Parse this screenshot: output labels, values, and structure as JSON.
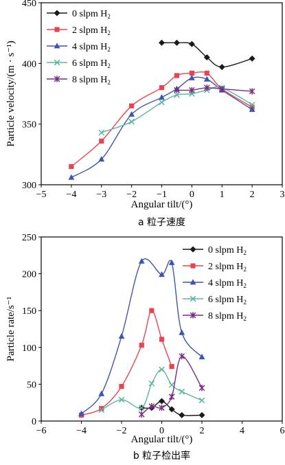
{
  "chart_data": [
    {
      "type": "line",
      "caption": "a 粒子速度",
      "xlabel": "Angular tilt/(°)",
      "ylabel": "Particle velocity/(m · s⁻¹)",
      "xlim": [
        -5,
        3
      ],
      "ylim": [
        300,
        450
      ],
      "xticks": [
        -5,
        -4,
        -3,
        -2,
        -1,
        0,
        1,
        2,
        3
      ],
      "yticks": [
        300,
        350,
        400,
        450
      ],
      "grid": false,
      "legend_position": "top-left",
      "series": [
        {
          "name": "0 slpm H",
          "sub": "2",
          "color": "#1a1a1a",
          "marker": "diamond",
          "x": [
            -1,
            -0.5,
            0,
            0.5,
            1,
            2
          ],
          "y": [
            417,
            417,
            416,
            405,
            397,
            404
          ]
        },
        {
          "name": "2 slpm H",
          "sub": "2",
          "color": "#e8444f",
          "marker": "square",
          "x": [
            -4,
            -3,
            -2,
            -1,
            -0.5,
            0,
            0.5,
            1,
            2
          ],
          "y": [
            315,
            336,
            365,
            380,
            390,
            392,
            392,
            379,
            364
          ]
        },
        {
          "name": "4 slpm H",
          "sub": "2",
          "color": "#3c55b0",
          "marker": "triangle",
          "x": [
            -4,
            -3,
            -2,
            -1,
            -0.5,
            0,
            0.5,
            1,
            2
          ],
          "y": [
            306,
            321,
            358,
            372,
            379,
            388,
            387,
            378,
            362
          ]
        },
        {
          "name": "6 slpm H",
          "sub": "2",
          "color": "#5ab5a0",
          "marker": "x",
          "x": [
            -3,
            -2,
            -1,
            -0.5,
            0,
            0.5,
            1,
            2
          ],
          "y": [
            343,
            352,
            368,
            374,
            375,
            378,
            380,
            366
          ]
        },
        {
          "name": "8 slpm H",
          "sub": "2",
          "color": "#7b2a86",
          "marker": "star",
          "x": [
            -0.5,
            0,
            0.5,
            1,
            2
          ],
          "y": [
            378,
            378,
            380,
            379,
            377
          ]
        }
      ]
    },
    {
      "type": "line",
      "caption": "b 粒子检出率",
      "xlabel": "Angular tilt/(°)",
      "ylabel": "Particle rate/s⁻¹",
      "xlim": [
        -6,
        6
      ],
      "ylim": [
        0,
        250
      ],
      "xticks": [
        -6,
        -4,
        -2,
        0,
        2,
        4,
        6
      ],
      "yticks": [
        0,
        50,
        100,
        150,
        200,
        250
      ],
      "grid": false,
      "legend_position": "top-right",
      "series": [
        {
          "name": "0 slpm H",
          "sub": "2",
          "color": "#1a1a1a",
          "marker": "diamond",
          "x": [
            -1,
            -0.5,
            0,
            0.5,
            1,
            2
          ],
          "y": [
            18,
            18,
            27,
            16,
            8,
            8
          ]
        },
        {
          "name": "2 slpm H",
          "sub": "2",
          "color": "#e8444f",
          "marker": "square",
          "x": [
            -4,
            -3,
            -2,
            -1,
            -0.5,
            0,
            0.5
          ],
          "y": [
            8,
            17,
            47,
            103,
            150,
            111,
            74
          ]
        },
        {
          "name": "4 slpm H",
          "sub": "2",
          "color": "#3c55b0",
          "marker": "triangle",
          "x": [
            -4,
            -3,
            -2,
            -1,
            0,
            0.5,
            1,
            2
          ],
          "y": [
            10,
            37,
            115,
            217,
            199,
            215,
            120,
            87
          ]
        },
        {
          "name": "6 slpm H",
          "sub": "2",
          "color": "#5ab5a0",
          "marker": "x",
          "x": [
            -3,
            -2,
            -1,
            -0.5,
            0,
            0.5,
            1,
            2
          ],
          "y": [
            15,
            29,
            18,
            51,
            70,
            49,
            40,
            28
          ]
        },
        {
          "name": "8 slpm H",
          "sub": "2",
          "color": "#7b2a86",
          "marker": "star",
          "x": [
            -1,
            -0.5,
            0,
            0.5,
            1,
            2
          ],
          "y": [
            9,
            20,
            18,
            33,
            88,
            45
          ]
        }
      ]
    }
  ]
}
